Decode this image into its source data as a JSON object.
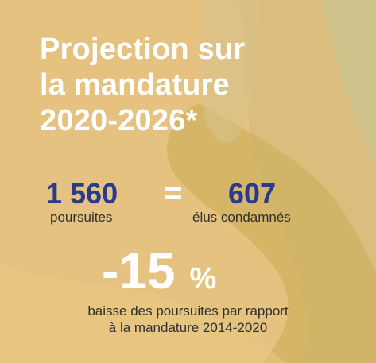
{
  "title": {
    "line1": "Projection sur",
    "line2": "la mandature",
    "line3": "2020-2026*"
  },
  "left_stat": {
    "value": "1 560",
    "label": "poursuites"
  },
  "equals": "=",
  "right_stat": {
    "value": "607",
    "label": "élus condamnés"
  },
  "change": {
    "value": "-15",
    "unit": "%"
  },
  "description": {
    "line1": "baisse des poursuites par rapport",
    "line2": "à la mandature 2014-2020"
  },
  "colors": {
    "background": "#e5c27f",
    "title": "#ffffff",
    "stat_number": "#2a3a8c",
    "body_text": "#2f2f2f"
  }
}
